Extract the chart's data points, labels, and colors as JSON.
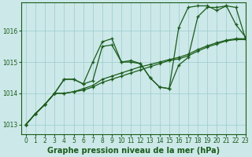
{
  "background_color": "#cce8e8",
  "grid_color": "#99cccc",
  "line_color": "#1a5c1a",
  "marker": "+",
  "title": "Graphe pression niveau de la mer (hPa)",
  "ylim": [
    1012.7,
    1016.9
  ],
  "xlim": [
    -0.5,
    23
  ],
  "yticks": [
    1013,
    1014,
    1015,
    1016
  ],
  "xticks": [
    0,
    1,
    2,
    3,
    4,
    5,
    6,
    7,
    8,
    9,
    10,
    11,
    12,
    13,
    14,
    15,
    16,
    17,
    18,
    19,
    20,
    21,
    22,
    23
  ],
  "series": [
    [
      1013.0,
      1013.35,
      1013.65,
      1014.0,
      1014.45,
      1014.45,
      1014.3,
      1015.0,
      1015.65,
      1015.75,
      1015.0,
      1015.05,
      1014.95,
      1014.5,
      1014.2,
      1014.15,
      1014.9,
      1015.15,
      1016.45,
      1016.75,
      1016.75,
      1016.8,
      1016.2,
      1015.8
    ],
    [
      1013.0,
      1013.35,
      1013.65,
      1014.0,
      1014.45,
      1014.45,
      1014.3,
      1014.4,
      1015.5,
      1015.55,
      1015.0,
      1015.0,
      1014.95,
      1014.5,
      1014.2,
      1014.15,
      1016.1,
      1016.75,
      1016.8,
      1016.8,
      1016.65,
      1016.8,
      1016.75,
      1015.75
    ],
    [
      1013.0,
      1013.35,
      1013.65,
      1014.0,
      1014.0,
      1014.05,
      1014.15,
      1014.25,
      1014.45,
      1014.55,
      1014.65,
      1014.75,
      1014.85,
      1014.92,
      1015.0,
      1015.08,
      1015.15,
      1015.25,
      1015.4,
      1015.52,
      1015.62,
      1015.7,
      1015.75,
      1015.75
    ],
    [
      1013.0,
      1013.35,
      1013.65,
      1014.0,
      1014.0,
      1014.05,
      1014.1,
      1014.2,
      1014.35,
      1014.45,
      1014.55,
      1014.65,
      1014.75,
      1014.85,
      1014.95,
      1015.05,
      1015.1,
      1015.2,
      1015.35,
      1015.48,
      1015.58,
      1015.68,
      1015.72,
      1015.72
    ]
  ],
  "tick_fontsize": 5.5,
  "title_fontsize": 7,
  "linewidth": 0.9,
  "markersize": 3.0,
  "markeredgewidth": 0.9
}
